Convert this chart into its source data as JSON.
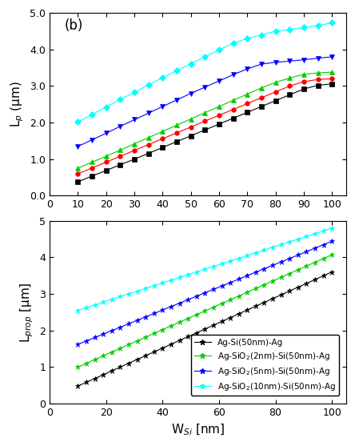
{
  "top_panel": {
    "ylabel": "L$_p$ (μm)",
    "label_text": "(b)",
    "xlim": [
      0,
      105
    ],
    "ylim": [
      0.0,
      5.0
    ],
    "yticks": [
      0.0,
      1.0,
      2.0,
      3.0,
      4.0,
      5.0
    ],
    "ytick_labels": [
      "0.0",
      "1.0",
      "2.0",
      "3.0",
      "4.0",
      "5.0"
    ],
    "xticks": [
      0,
      10,
      20,
      30,
      40,
      50,
      60,
      70,
      80,
      90,
      100
    ],
    "series": [
      {
        "color": "black",
        "marker": "s",
        "markersize": 4,
        "x": [
          10,
          15,
          20,
          25,
          30,
          35,
          40,
          45,
          50,
          55,
          60,
          65,
          70,
          75,
          80,
          85,
          90,
          95,
          100
        ],
        "y": [
          0.38,
          0.54,
          0.69,
          0.85,
          1.0,
          1.16,
          1.32,
          1.48,
          1.64,
          1.8,
          1.96,
          2.12,
          2.28,
          2.44,
          2.6,
          2.76,
          2.92,
          3.02,
          3.06
        ]
      },
      {
        "color": "red",
        "marker": "o",
        "markersize": 4,
        "x": [
          10,
          15,
          20,
          25,
          30,
          35,
          40,
          45,
          50,
          55,
          60,
          65,
          70,
          75,
          80,
          85,
          90,
          95,
          100
        ],
        "y": [
          0.6,
          0.76,
          0.92,
          1.08,
          1.24,
          1.4,
          1.56,
          1.72,
          1.88,
          2.04,
          2.2,
          2.36,
          2.52,
          2.68,
          2.84,
          3.0,
          3.12,
          3.18,
          3.2
        ]
      },
      {
        "color": "#00cc00",
        "marker": "^",
        "markersize": 4,
        "x": [
          10,
          15,
          20,
          25,
          30,
          35,
          40,
          45,
          50,
          55,
          60,
          65,
          70,
          75,
          80,
          85,
          90,
          95,
          100
        ],
        "y": [
          0.75,
          0.92,
          1.08,
          1.25,
          1.42,
          1.59,
          1.76,
          1.93,
          2.1,
          2.27,
          2.44,
          2.61,
          2.78,
          2.95,
          3.1,
          3.22,
          3.32,
          3.36,
          3.38
        ]
      },
      {
        "color": "blue",
        "marker": "v",
        "markersize": 4,
        "x": [
          10,
          15,
          20,
          25,
          30,
          35,
          40,
          45,
          50,
          55,
          60,
          65,
          70,
          75,
          80,
          85,
          90,
          95,
          100
        ],
        "y": [
          1.35,
          1.53,
          1.71,
          1.9,
          2.08,
          2.26,
          2.44,
          2.62,
          2.8,
          2.97,
          3.14,
          3.31,
          3.47,
          3.6,
          3.65,
          3.68,
          3.72,
          3.76,
          3.8
        ]
      },
      {
        "color": "cyan",
        "marker": "D",
        "markersize": 4,
        "x": [
          10,
          15,
          20,
          25,
          30,
          35,
          40,
          45,
          50,
          55,
          60,
          65,
          70,
          75,
          80,
          85,
          90,
          95,
          100
        ],
        "y": [
          2.02,
          2.22,
          2.43,
          2.63,
          2.83,
          3.03,
          3.23,
          3.42,
          3.61,
          3.8,
          3.99,
          4.17,
          4.3,
          4.4,
          4.5,
          4.55,
          4.6,
          4.65,
          4.73
        ]
      }
    ]
  },
  "bottom_panel": {
    "xlabel": "W$_{Si}$ [nm]",
    "ylabel": "L$_{prop}$ [μm]",
    "xlim": [
      0,
      105
    ],
    "ylim": [
      0,
      5
    ],
    "yticks": [
      0,
      1,
      2,
      3,
      4,
      5
    ],
    "xticks": [
      0,
      20,
      40,
      60,
      80,
      100
    ],
    "series": [
      {
        "color": "black",
        "marker": "*",
        "markersize": 5,
        "label": "Ag-Si(50nm)-Ag",
        "x_start": 10,
        "x_end": 100,
        "n_points": 31,
        "y_start": 0.48,
        "y_end": 3.6
      },
      {
        "color": "#00cc00",
        "marker": "*",
        "markersize": 5,
        "label": "Ag-SiO$_2$(2nm)-Si(50nm)-Ag",
        "x_start": 10,
        "x_end": 100,
        "n_points": 31,
        "y_start": 1.0,
        "y_end": 4.07
      },
      {
        "color": "blue",
        "marker": "*",
        "markersize": 5,
        "label": "Ag-SiO$_2$(5nm)-Si(50nm)-Ag",
        "x_start": 10,
        "x_end": 100,
        "n_points": 31,
        "y_start": 1.62,
        "y_end": 4.44
      },
      {
        "color": "cyan",
        "marker": "*",
        "markersize": 5,
        "label": "Ag-SiO$_2$(10nm)-Si(50nm)-Ag",
        "x_start": 10,
        "x_end": 100,
        "n_points": 31,
        "y_start": 2.55,
        "y_end": 4.8
      }
    ]
  }
}
